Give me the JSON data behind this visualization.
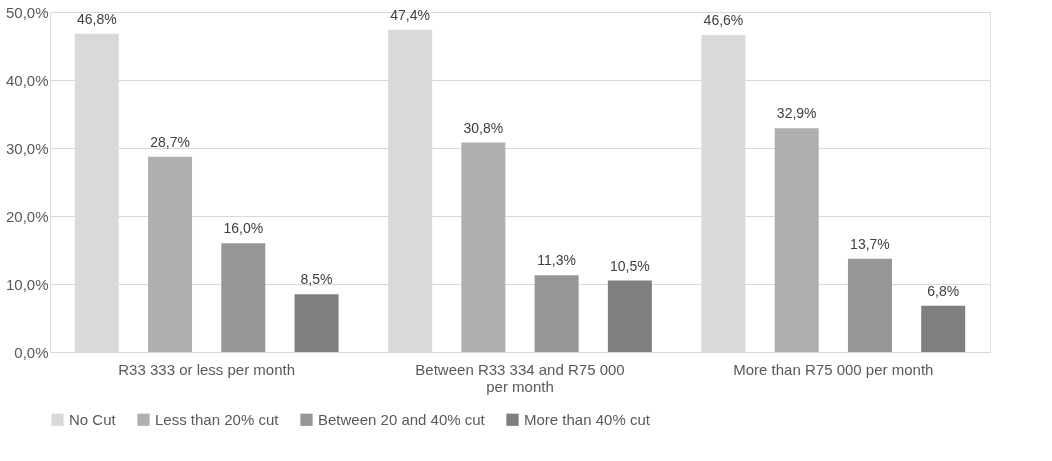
{
  "chart_data": {
    "type": "bar",
    "categories": [
      "R33 333 or less per month",
      "Between R33 334 and R75 000 per month",
      "More than R75 000 per month"
    ],
    "series": [
      {
        "name": "No Cut",
        "color": "#d9d9d9",
        "values": [
          46.8,
          47.4,
          46.6
        ],
        "value_labels": [
          "46,8%",
          "47,4%",
          "46,6%"
        ]
      },
      {
        "name": "Less than 20% cut",
        "color": "#afafaf",
        "values": [
          28.7,
          30.8,
          32.9
        ],
        "value_labels": [
          "28,7%",
          "30,8%",
          "32,9%"
        ]
      },
      {
        "name": "Between 20 and 40% cut",
        "color": "#969696",
        "values": [
          16.0,
          11.3,
          13.7
        ],
        "value_labels": [
          "16,0%",
          "11,3%",
          "13,7%"
        ]
      },
      {
        "name": "More than 40% cut",
        "color": "#7f7f7f",
        "values": [
          8.5,
          10.5,
          6.8
        ],
        "value_labels": [
          "8,5%",
          "10,5%",
          "6,8%"
        ]
      }
    ],
    "ylim": [
      0,
      50
    ],
    "yticks": [
      {
        "value": 0,
        "label": "0,0%"
      },
      {
        "value": 10,
        "label": "10,0%"
      },
      {
        "value": 20,
        "label": "20,0%"
      },
      {
        "value": 30,
        "label": "30,0%"
      },
      {
        "value": 40,
        "label": "40,0%"
      },
      {
        "value": 50,
        "label": "50,0%"
      }
    ],
    "grid": "y",
    "legend": "bottom"
  }
}
